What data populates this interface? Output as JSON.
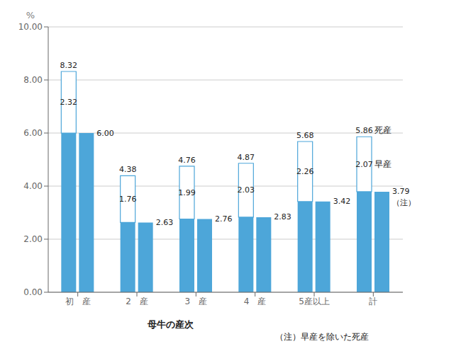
{
  "chart_data": {
    "type": "bar",
    "categories": [
      "初　産",
      "2　産",
      "3　産",
      "4　産",
      "5産以上",
      "計"
    ],
    "series": [
      {
        "name": "（注）",
        "color": "#4da6d9",
        "values": [
          6.0,
          2.63,
          2.76,
          2.83,
          3.42,
          3.79
        ],
        "stacked": true
      },
      {
        "name": "早産",
        "color": "#ffffff",
        "values": [
          2.32,
          1.76,
          1.99,
          2.03,
          2.26,
          2.07
        ],
        "stacked": true,
        "data_labels": true
      },
      {
        "name": "（注）",
        "color": "#4da6d9",
        "values": [
          6.0,
          2.63,
          2.76,
          2.83,
          3.42,
          3.79
        ],
        "value_labels": [
          "6.00",
          "2.63",
          "2.76",
          "2.83",
          "3.42",
          "3.79"
        ],
        "data_labels": true
      }
    ],
    "totals": [
      8.32,
      4.38,
      4.76,
      4.87,
      5.68,
      5.86
    ],
    "annotations": [
      {
        "text": "死産",
        "category": "計"
      },
      {
        "text": "早産",
        "category": "計"
      },
      {
        "text": "（注）",
        "category": "計"
      }
    ],
    "ylabel": "%",
    "xlabel": "母牛の産次",
    "caption": "（注）早産を除いた死産",
    "ylim": [
      0,
      10
    ],
    "yticks": [
      {
        "value": 0,
        "label": "0.00"
      },
      {
        "value": 2,
        "label": "2.00"
      },
      {
        "value": 4,
        "label": "4.00"
      },
      {
        "value": 6,
        "label": "6.00"
      },
      {
        "value": 8,
        "label": "8.00"
      },
      {
        "value": 10,
        "label": "10.00"
      }
    ],
    "grid": true
  }
}
